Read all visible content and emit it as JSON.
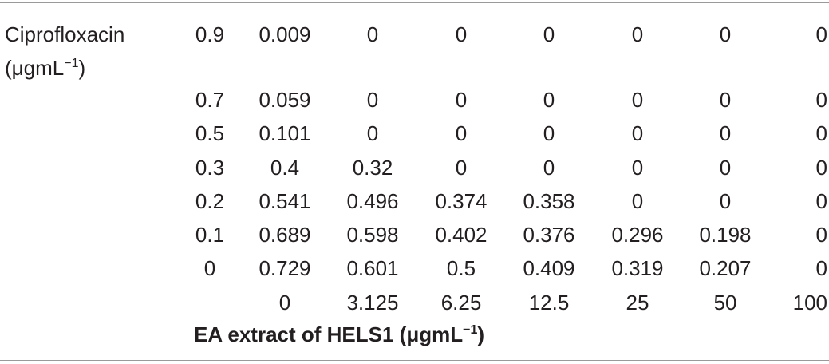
{
  "table": {
    "row_label": "Ciprofloxacin",
    "row_label_unit_base": "(μgmL",
    "row_label_unit_sup": "−1",
    "row_label_unit_close": ")",
    "column_axis_label_base": "EA extract of HELS1 (μgmL",
    "column_axis_label_sup": "−1",
    "column_axis_label_close": ")",
    "columns": [
      "0",
      "3.125",
      "6.25",
      "12.5",
      "25",
      "50",
      "100"
    ],
    "rows": [
      {
        "cipro": "0.9",
        "values": [
          "0.009",
          "0",
          "0",
          "0",
          "0",
          "0",
          "0"
        ]
      },
      {
        "cipro": "0.7",
        "values": [
          "0.059",
          "0",
          "0",
          "0",
          "0",
          "0",
          "0"
        ]
      },
      {
        "cipro": "0.5",
        "values": [
          "0.101",
          "0",
          "0",
          "0",
          "0",
          "0",
          "0"
        ]
      },
      {
        "cipro": "0.3",
        "values": [
          "0.4",
          "0.32",
          "0",
          "0",
          "0",
          "0",
          "0"
        ]
      },
      {
        "cipro": "0.2",
        "values": [
          "0.541",
          "0.496",
          "0.374",
          "0.358",
          "0",
          "0",
          "0"
        ]
      },
      {
        "cipro": "0.1",
        "values": [
          "0.689",
          "0.598",
          "0.402",
          "0.376",
          "0.296",
          "0.198",
          "0"
        ]
      },
      {
        "cipro": "0",
        "values": [
          "0.729",
          "0.601",
          "0.5",
          "0.409",
          "0.319",
          "0.207",
          "0"
        ]
      }
    ]
  }
}
